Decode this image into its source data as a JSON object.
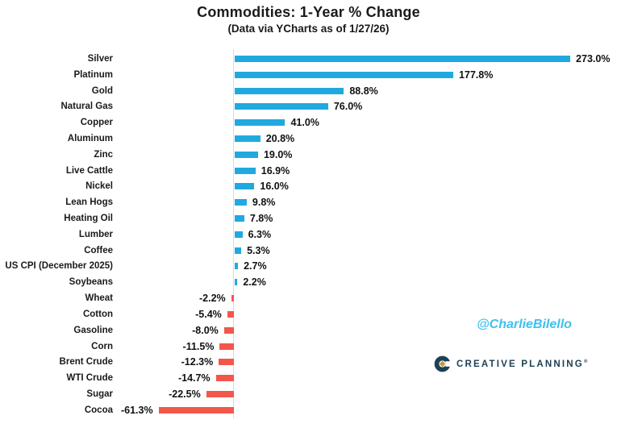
{
  "header": {
    "title": "Commodities: 1-Year % Change",
    "subtitle": "(Data via YCharts as of 1/27/26)"
  },
  "watermark": "@CharlieBilello",
  "brand": {
    "name": "CREATIVE PLANNING",
    "trademark": "®",
    "icon": "creative-planning-c-logo"
  },
  "colors": {
    "positive_bar": "#21a9df",
    "negative_bar": "#f2574a",
    "zero_line": "#dcdcdc",
    "text": "#1a1a1a",
    "watermark": "#3ec1ef",
    "brand_navy": "#1d4054",
    "brand_gold": "#c3993f"
  },
  "chart_data": {
    "type": "bar",
    "orientation": "horizontal",
    "title": "Commodities: 1-Year % Change",
    "subtitle": "(Data via YCharts as of 1/27/26)",
    "xlabel": "",
    "ylabel": "",
    "xlim": [
      -95,
      310
    ],
    "grid": false,
    "legend": false,
    "categories": [
      "Silver",
      "Platinum",
      "Gold",
      "Natural Gas",
      "Copper",
      "Aluminum",
      "Zinc",
      "Live Cattle",
      "Nickel",
      "Lean Hogs",
      "Heating Oil",
      "Lumber",
      "Coffee",
      "US CPI (December 2025)",
      "Soybeans",
      "Wheat",
      "Cotton",
      "Gasoline",
      "Corn",
      "Brent Crude",
      "WTI Crude",
      "Sugar",
      "Cocoa"
    ],
    "values": [
      273.0,
      177.8,
      88.8,
      76.0,
      41.0,
      20.8,
      19.0,
      16.9,
      16.0,
      9.8,
      7.8,
      6.3,
      5.3,
      2.7,
      2.2,
      -2.2,
      -5.4,
      -8.0,
      -11.5,
      -12.3,
      -14.7,
      -22.5,
      -61.3
    ],
    "value_labels": [
      "273.0%",
      "177.8%",
      "88.8%",
      "76.0%",
      "41.0%",
      "20.8%",
      "19.0%",
      "16.9%",
      "16.0%",
      "9.8%",
      "7.8%",
      "6.3%",
      "5.3%",
      "2.7%",
      "2.2%",
      "-2.2%",
      "-5.4%",
      "-8.0%",
      "-11.5%",
      "-12.3%",
      "-14.7%",
      "-22.5%",
      "-61.3%"
    ]
  }
}
